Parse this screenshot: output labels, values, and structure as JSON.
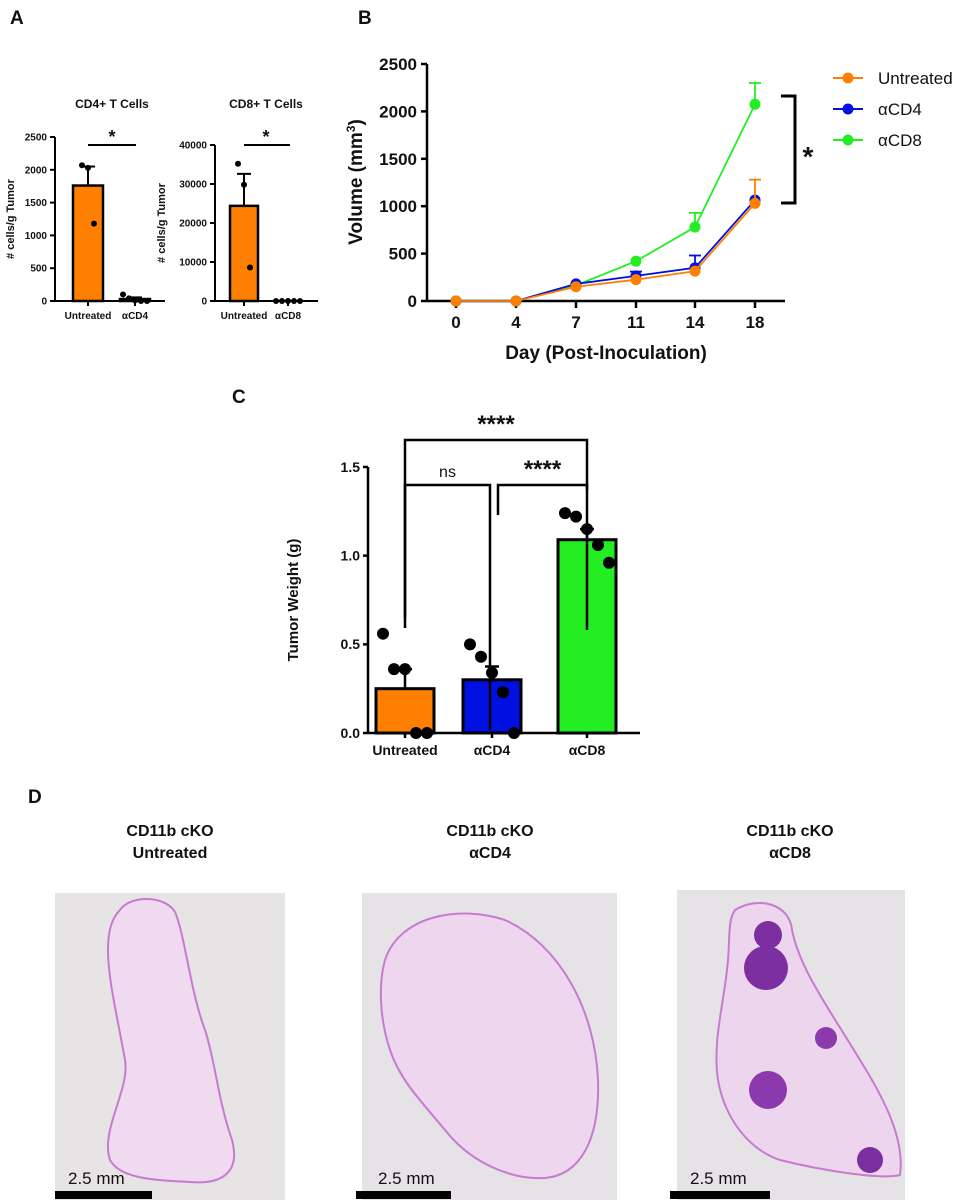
{
  "panel_labels": [
    "A",
    "B",
    "C",
    "D"
  ],
  "colors": {
    "untreated": "#ff8000",
    "acd4": "#0010e0",
    "acd8": "#22ee22",
    "tissue": "#c77ad0",
    "slide": "#e6e3e6"
  },
  "chart_data": [
    {
      "id": "A1",
      "type": "bar",
      "title": "CD4+ T Cells",
      "ylabel": "# cells/g Tumor",
      "xlabel": "",
      "ylim": [
        0,
        2500
      ],
      "yticks": [
        0,
        500,
        1000,
        1500,
        2000,
        2500
      ],
      "categories": [
        "Untreated",
        "αCD4"
      ],
      "values": [
        1760,
        30
      ],
      "sem": [
        290,
        25
      ],
      "points": [
        [
          2070,
          2030,
          1180
        ],
        [
          100,
          40,
          10,
          0,
          0
        ]
      ],
      "significance": "*"
    },
    {
      "id": "A2",
      "type": "bar",
      "title": "CD8+ T Cells",
      "ylabel": "# cells/g Tumor",
      "xlabel": "",
      "ylim": [
        0,
        40000
      ],
      "yticks": [
        0,
        10000,
        20000,
        30000,
        40000
      ],
      "categories": [
        "Untreated",
        "αCD8"
      ],
      "values": [
        24400,
        0
      ],
      "sem": [
        8200,
        0
      ],
      "points": [
        [
          35200,
          29800,
          8600
        ],
        [
          0,
          0,
          0,
          0,
          0
        ]
      ],
      "significance": "*"
    },
    {
      "id": "B",
      "type": "line",
      "title": "",
      "xlabel": "Day (Post-Inoculation)",
      "ylabel": "Volume (mm³)",
      "ylabel_main": "Volume (mm",
      "ylabel_sup": "3",
      "ylabel_end": ")",
      "x": [
        0,
        4,
        7,
        11,
        14,
        18
      ],
      "ylim": [
        0,
        2500
      ],
      "yticks": [
        0,
        500,
        1000,
        1500,
        2000,
        2500
      ],
      "series": [
        {
          "name": "Untreated",
          "values": [
            0,
            0,
            150,
            225,
            315,
            1030
          ],
          "err": [
            0,
            0,
            0,
            0,
            0,
            250
          ]
        },
        {
          "name": "αCD4",
          "values": [
            0,
            0,
            180,
            265,
            350,
            1065
          ],
          "err": [
            0,
            0,
            0,
            45,
            130,
            0
          ]
        },
        {
          "name": "αCD8",
          "values": [
            0,
            0,
            165,
            420,
            780,
            2075
          ],
          "err": [
            0,
            0,
            0,
            0,
            150,
            225
          ]
        }
      ],
      "legend": "top-right",
      "significance": "*"
    },
    {
      "id": "C",
      "type": "bar",
      "title": "",
      "ylabel": "Tumor Weight (g)",
      "xlabel": "",
      "ylim": [
        0,
        1.5
      ],
      "yticks": [
        "0.0",
        "0.5",
        "1.0",
        "1.5"
      ],
      "categories": [
        "Untreated",
        "αCD4",
        "αCD8"
      ],
      "values": [
        0.25,
        0.3,
        1.09
      ],
      "sem": [
        0.11,
        0.075,
        0.06
      ],
      "points": [
        [
          0.56,
          0.36,
          0.36,
          0.0,
          0.0
        ],
        [
          0.5,
          0.43,
          0.34,
          0.23,
          0.0
        ],
        [
          1.24,
          1.22,
          1.15,
          1.06,
          0.96
        ]
      ],
      "comparisons": [
        {
          "pair": [
            "Untreated",
            "αCD8"
          ],
          "label": "****"
        },
        {
          "pair": [
            "Untreated",
            "αCD4"
          ],
          "label": "ns"
        },
        {
          "pair": [
            "αCD4",
            "αCD8"
          ],
          "label": "****"
        }
      ]
    }
  ],
  "histology": [
    {
      "title1": "CD11b cKO",
      "title2": "Untreated",
      "scale": "2.5 mm"
    },
    {
      "title1": "CD11b cKO",
      "title2": "αCD4",
      "scale": "2.5 mm"
    },
    {
      "title1": "CD11b cKO",
      "title2": "αCD8",
      "scale": "2.5 mm"
    }
  ]
}
